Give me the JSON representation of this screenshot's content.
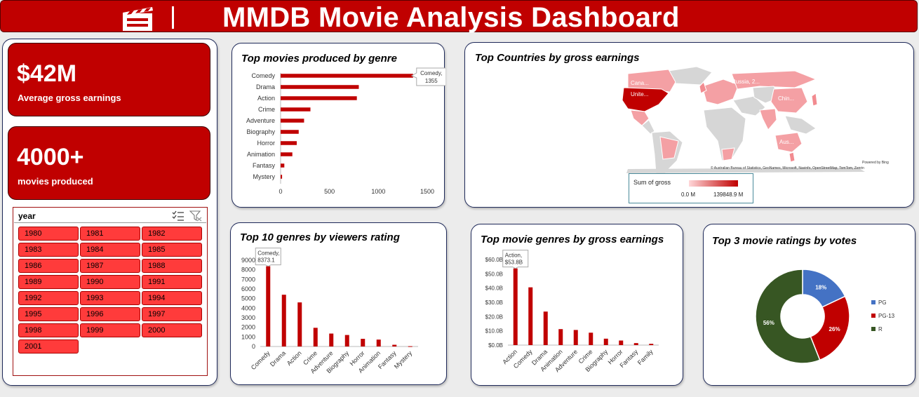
{
  "header": {
    "title": "MMDB Movie Analysis Dashboard",
    "logo_icon": "clapperboard-icon"
  },
  "kpis": [
    {
      "value": "$42M",
      "label": "Average gross earnings"
    },
    {
      "value": "4000+",
      "label": "movies produced"
    }
  ],
  "slicer": {
    "title": "year",
    "years": [
      "1980",
      "1981",
      "1982",
      "1983",
      "1984",
      "1985",
      "1986",
      "1987",
      "1988",
      "1989",
      "1990",
      "1991",
      "1992",
      "1993",
      "1994",
      "1995",
      "1996",
      "1997",
      "1998",
      "1999",
      "2000",
      "2001"
    ]
  },
  "map": {
    "title": "Top Countries by gross earnings",
    "labels": [
      "Cana...",
      "Unite...",
      "Russia, 2...",
      "Chin...",
      "Aus..."
    ],
    "legend_title": "Sum of gross",
    "legend_min": "0.0 M",
    "legend_max": "139848.9 M",
    "powered_by": "Powered by Bing",
    "copyright": "© Australian Bureau of Statistics, GeoNames, Microsoft, Navinfo, OpenStreetMap, TomTom, Zenrin"
  },
  "chart_data": [
    {
      "type": "bar",
      "orientation": "horizontal",
      "title": "Top movies produced by genre",
      "categories": [
        "Comedy",
        "Drama",
        "Action",
        "Crime",
        "Adventure",
        "Biography",
        "Horror",
        "Animation",
        "Fantasy",
        "Mystery"
      ],
      "values": [
        1355,
        800,
        780,
        305,
        240,
        185,
        165,
        120,
        38,
        15
      ],
      "xlim": [
        0,
        1500
      ],
      "xticks": [
        "0",
        "500",
        "1000",
        "1500"
      ],
      "callout": {
        "text": "Comedy,",
        "value": "1355"
      }
    },
    {
      "type": "bar",
      "title": "Top 10 genres by viewers rating",
      "categories": [
        "Comedy",
        "Drama",
        "Action",
        "Crime",
        "Adventure",
        "Biography",
        "Horror",
        "Animation",
        "Fantasy",
        "Mystery"
      ],
      "values": [
        8373.1,
        5400,
        4600,
        1950,
        1350,
        1200,
        800,
        720,
        180,
        30
      ],
      "ylim": [
        0,
        9000
      ],
      "yticks": [
        "0",
        "1000",
        "2000",
        "3000",
        "4000",
        "5000",
        "6000",
        "7000",
        "8000",
        "9000"
      ],
      "callout": {
        "text": "Comedy,",
        "value": "8373.1"
      }
    },
    {
      "type": "bar",
      "title": "Top movie genres by gross earnings",
      "categories": [
        "Action",
        "Comedy",
        "Drama",
        "Animation",
        "Adventure",
        "Crime",
        "Biography",
        "Horror",
        "Fantasy",
        "Family"
      ],
      "values": [
        53.8,
        40.5,
        23.5,
        11.2,
        10.6,
        8.7,
        4.5,
        3.2,
        1.4,
        0.9
      ],
      "ylim": [
        0,
        60
      ],
      "yticks": [
        "$0.0B",
        "$10.0B",
        "$20.0B",
        "$30.0B",
        "$40.0B",
        "$50.0B",
        "$60.0B"
      ],
      "callout": {
        "text": "Action,",
        "value": "$53.8B"
      }
    },
    {
      "type": "pie",
      "variant": "donut",
      "title": "Top 3 movie ratings by votes",
      "categories": [
        "PG",
        "PG-13",
        "R"
      ],
      "values": [
        18,
        26,
        56
      ],
      "labels": [
        "18%",
        "26%",
        "56%"
      ],
      "colors": [
        "#4472c4",
        "#c00000",
        "#375623"
      ]
    }
  ]
}
